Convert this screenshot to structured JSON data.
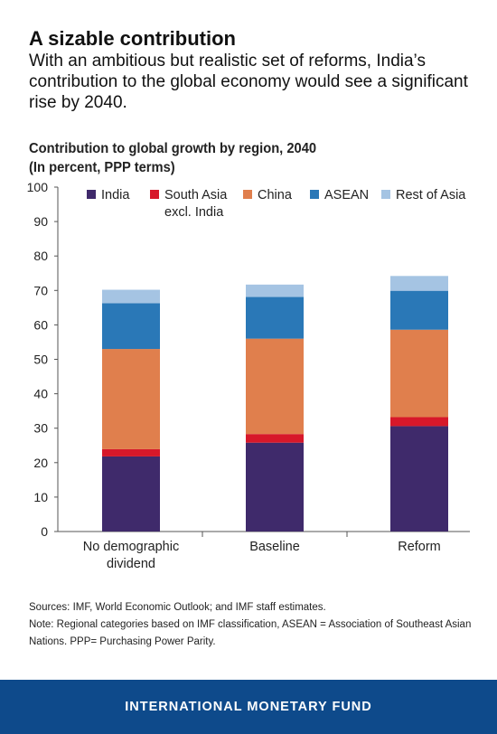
{
  "header": {
    "headline": "A sizable contribution",
    "intro": "With an ambitious but realistic set of reforms, India’s contribution to the global economy would see a significant rise by 2040."
  },
  "chart_title": {
    "line1": "Contribution to global growth by region, 2040",
    "line2": "(In percent, PPP terms)"
  },
  "chart_data": {
    "type": "bar",
    "stacked": true,
    "title": "Contribution to global growth by region, 2040",
    "subtitle": "(In percent, PPP terms)",
    "xlabel": "",
    "ylabel": "",
    "ylim": [
      0,
      100
    ],
    "yticks": [
      "0",
      "10",
      "20",
      "30",
      "40",
      "50",
      "60",
      "70",
      "80",
      "90",
      "100"
    ],
    "categories": [
      [
        "No demographic",
        "dividend"
      ],
      [
        "Baseline"
      ],
      [
        "Reform"
      ]
    ],
    "legend_position": "top",
    "grid": false,
    "series": [
      {
        "name": [
          "India"
        ],
        "color": "#3f2a6b",
        "values": [
          21.8,
          25.8,
          30.6
        ]
      },
      {
        "name": [
          "South Asia",
          "excl. India"
        ],
        "color": "#d7182a",
        "values": [
          2.1,
          2.5,
          2.6
        ]
      },
      {
        "name": [
          "China"
        ],
        "color": "#e07f4d",
        "values": [
          29.1,
          27.7,
          25.4
        ]
      },
      {
        "name": [
          "ASEAN"
        ],
        "color": "#2a78b7",
        "values": [
          13.3,
          12.1,
          11.3
        ]
      },
      {
        "name": [
          "Rest of Asia"
        ],
        "color": "#a5c4e3",
        "values": [
          3.9,
          3.6,
          4.3
        ]
      }
    ]
  },
  "notes": {
    "sources": "Sources: IMF, World Economic Outlook; and IMF staff estimates.",
    "note": "Note: Regional categories based on IMF classification, ASEAN = Association of Southeast Asian Nations. PPP= Purchasing Power Parity."
  },
  "footer": {
    "label": "INTERNATIONAL MONETARY FUND",
    "color": "#0e4a8b"
  }
}
